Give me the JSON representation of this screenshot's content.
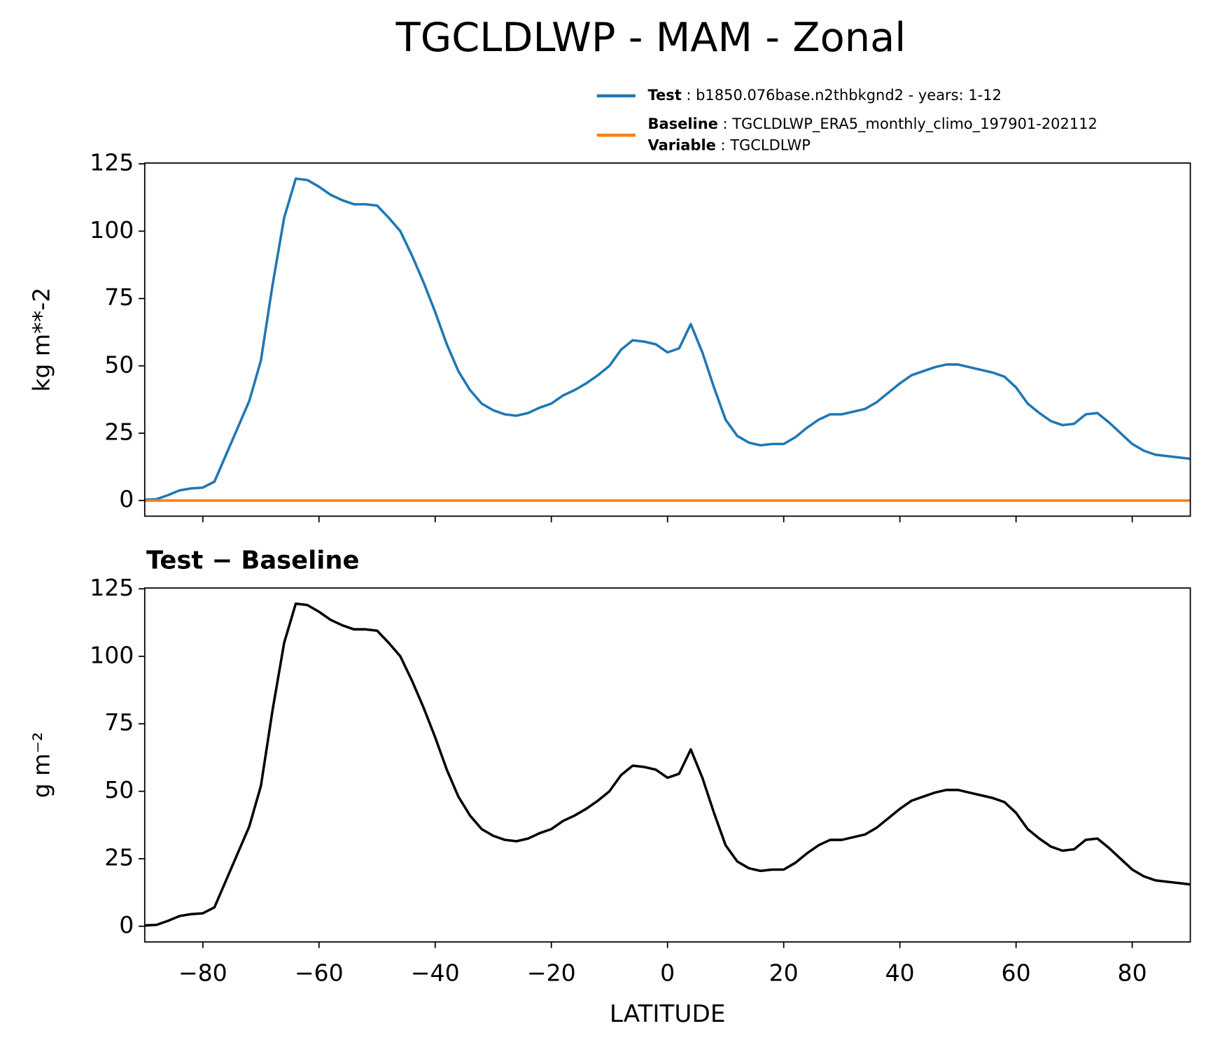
{
  "chart_data": [
    {
      "type": "line",
      "title": "TGCLDLWP - MAM - Zonal",
      "ylabel": "kg m**-2",
      "x": [
        -90,
        -88,
        -86,
        -84,
        -82,
        -80,
        -78,
        -76,
        -74,
        -72,
        -70,
        -68,
        -66,
        -64,
        -62,
        -60,
        -58,
        -56,
        -54,
        -52,
        -50,
        -48,
        -46,
        -44,
        -42,
        -40,
        -38,
        -36,
        -34,
        -32,
        -30,
        -28,
        -26,
        -24,
        -22,
        -20,
        -18,
        -16,
        -14,
        -12,
        -10,
        -8,
        -6,
        -4,
        -2,
        0,
        2,
        4,
        6,
        8,
        10,
        12,
        14,
        16,
        18,
        20,
        22,
        24,
        26,
        28,
        30,
        32,
        34,
        36,
        38,
        40,
        42,
        44,
        46,
        48,
        50,
        52,
        54,
        56,
        58,
        60,
        62,
        64,
        66,
        68,
        70,
        72,
        74,
        76,
        78,
        80,
        82,
        84,
        86,
        88,
        90
      ],
      "series": [
        {
          "name": "Test",
          "description": ": b1850.076base.n2thbkgnd2 - years: 1-12",
          "color": "#1f77b4",
          "values": [
            0.3,
            0.5,
            2,
            3.8,
            4.5,
            4.8,
            7,
            17,
            27,
            37,
            52,
            80,
            105,
            119.5,
            119,
            116.5,
            113.5,
            111.5,
            110,
            110,
            109.5,
            105,
            100,
            91,
            81,
            70,
            58,
            48,
            41,
            36,
            33.5,
            32,
            31.5,
            32.5,
            34.5,
            36,
            39,
            41,
            43.5,
            46.5,
            50,
            56,
            59.5,
            59,
            58,
            55,
            56.5,
            65.5,
            55,
            42,
            30,
            24,
            21.5,
            20.5,
            21,
            21,
            23.5,
            27,
            30,
            32,
            32,
            33,
            34,
            36.5,
            40,
            43.5,
            46.5,
            48,
            49.5,
            50.5,
            50.5,
            49.5,
            48.5,
            47.5,
            46,
            42,
            36,
            32.5,
            29.5,
            28,
            28.5,
            32,
            32.5,
            29,
            25,
            21,
            18.5,
            17,
            16.5,
            16,
            15.5
          ]
        },
        {
          "name": "Baseline",
          "description": ": TGCLDLWP_ERA5_monthly_climo_197901-202112",
          "color": "#ff7f0e",
          "values": [
            0,
            0,
            0,
            0,
            0,
            0,
            0,
            0,
            0,
            0,
            0,
            0,
            0,
            0,
            0,
            0,
            0,
            0,
            0,
            0,
            0,
            0,
            0,
            0,
            0,
            0,
            0,
            0,
            0,
            0,
            0,
            0,
            0,
            0,
            0,
            0,
            0,
            0,
            0,
            0,
            0,
            0,
            0,
            0,
            0,
            0,
            0,
            0,
            0,
            0,
            0,
            0,
            0,
            0,
            0,
            0,
            0,
            0,
            0,
            0,
            0,
            0,
            0,
            0,
            0,
            0,
            0,
            0,
            0,
            0,
            0,
            0,
            0,
            0,
            0,
            0,
            0,
            0,
            0,
            0,
            0,
            0,
            0,
            0,
            0,
            0,
            0,
            0,
            0,
            0,
            0
          ]
        }
      ],
      "legend_extra": {
        "name": "Variable",
        "description": ": TGCLDLWP"
      },
      "xlim": [
        -90,
        90
      ],
      "ylim": [
        -5.8,
        125.3
      ],
      "xticks": [
        -80,
        -60,
        -40,
        -20,
        0,
        20,
        40,
        60,
        80
      ],
      "yticks": [
        0,
        25,
        50,
        75,
        100,
        125
      ]
    },
    {
      "type": "line",
      "title": "Test − Baseline",
      "ylabel": "g m⁻²",
      "xlabel": "LATITUDE",
      "x": [
        -90,
        -88,
        -86,
        -84,
        -82,
        -80,
        -78,
        -76,
        -74,
        -72,
        -70,
        -68,
        -66,
        -64,
        -62,
        -60,
        -58,
        -56,
        -54,
        -52,
        -50,
        -48,
        -46,
        -44,
        -42,
        -40,
        -38,
        -36,
        -34,
        -32,
        -30,
        -28,
        -26,
        -24,
        -22,
        -20,
        -18,
        -16,
        -14,
        -12,
        -10,
        -8,
        -6,
        -4,
        -2,
        0,
        2,
        4,
        6,
        8,
        10,
        12,
        14,
        16,
        18,
        20,
        22,
        24,
        26,
        28,
        30,
        32,
        34,
        36,
        38,
        40,
        42,
        44,
        46,
        48,
        50,
        52,
        54,
        56,
        58,
        60,
        62,
        64,
        66,
        68,
        70,
        72,
        74,
        76,
        78,
        80,
        82,
        84,
        86,
        88,
        90
      ],
      "series": [
        {
          "color": "#000000",
          "values": [
            0.3,
            0.5,
            2,
            3.8,
            4.5,
            4.8,
            7,
            17,
            27,
            37,
            52,
            80,
            105,
            119.5,
            119,
            116.5,
            113.5,
            111.5,
            110,
            110,
            109.5,
            105,
            100,
            91,
            81,
            70,
            58,
            48,
            41,
            36,
            33.5,
            32,
            31.5,
            32.5,
            34.5,
            36,
            39,
            41,
            43.5,
            46.5,
            50,
            56,
            59.5,
            59,
            58,
            55,
            56.5,
            65.5,
            55,
            42,
            30,
            24,
            21.5,
            20.5,
            21,
            21,
            23.5,
            27,
            30,
            32,
            32,
            33,
            34,
            36.5,
            40,
            43.5,
            46.5,
            48,
            49.5,
            50.5,
            50.5,
            49.5,
            48.5,
            47.5,
            46,
            42,
            36,
            32.5,
            29.5,
            28,
            28.5,
            32,
            32.5,
            29,
            25,
            21,
            18.5,
            17,
            16.5,
            16,
            15.5
          ]
        }
      ],
      "xlim": [
        -90,
        90
      ],
      "ylim": [
        -5.8,
        125.3
      ],
      "xticks": [
        {
          "value": -80,
          "label": "−80"
        },
        {
          "value": -60,
          "label": "−60"
        },
        {
          "value": -40,
          "label": "−40"
        },
        {
          "value": -20,
          "label": "−20"
        },
        0,
        20,
        40,
        60,
        80
      ],
      "yticks": [
        0,
        25,
        50,
        75,
        100,
        125
      ]
    }
  ]
}
